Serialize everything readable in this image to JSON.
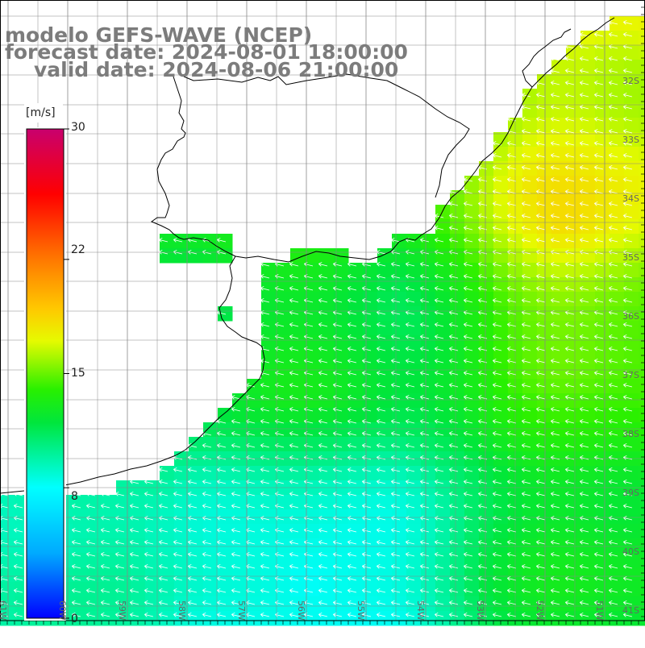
{
  "title": {
    "line1": "modelo GEFS-WAVE (NCEP)",
    "line2": "forecast date: 2024-08-01 18:00:00",
    "line3": "valid date: 2024-08-06 21:00:00"
  },
  "colorbar": {
    "unit": "[m/s]",
    "ticks": [
      "30",
      "22",
      "15",
      "8",
      "0"
    ],
    "tick_values": [
      30,
      22,
      15,
      8,
      0
    ],
    "min": 0,
    "max": 30,
    "colors": [
      "#0000ff",
      "#00c8ff",
      "#00ffff",
      "#00ff00",
      "#ffff00",
      "#ff8800",
      "#ff0000",
      "#cc0066"
    ]
  },
  "lat_labels": [
    "32S",
    "33S",
    "34S",
    "35S",
    "36S",
    "37S",
    "38S",
    "39S",
    "40S",
    "41S"
  ],
  "lon_labels": [
    "61W",
    "60W",
    "59W",
    "58W",
    "57W",
    "56W",
    "55W",
    "54W",
    "53W",
    "52W",
    "51W"
  ],
  "colors": {
    "background": "#ffffff",
    "grid": "#888888",
    "coast": "#000000",
    "arrows": "#ffffff",
    "title": "#7c7c7c"
  }
}
